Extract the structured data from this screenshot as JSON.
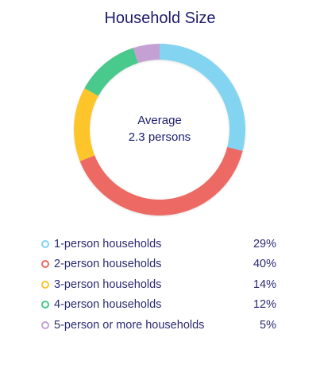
{
  "chart_data": {
    "type": "pie",
    "title": "Household Size",
    "center_label": {
      "line1": "Average",
      "line2": "2.3 persons"
    },
    "categories": [
      "1-person households",
      "2-person households",
      "3-person households",
      "4-person households",
      "5-person or more households"
    ],
    "values": [
      29,
      40,
      14,
      12,
      5
    ],
    "value_labels": [
      "29%",
      "40%",
      "14%",
      "12%",
      "5%"
    ],
    "colors": [
      "#82d4f0",
      "#ec6a63",
      "#fdc529",
      "#48c98b",
      "#c5a0d3"
    ],
    "legend_position": "bottom"
  }
}
